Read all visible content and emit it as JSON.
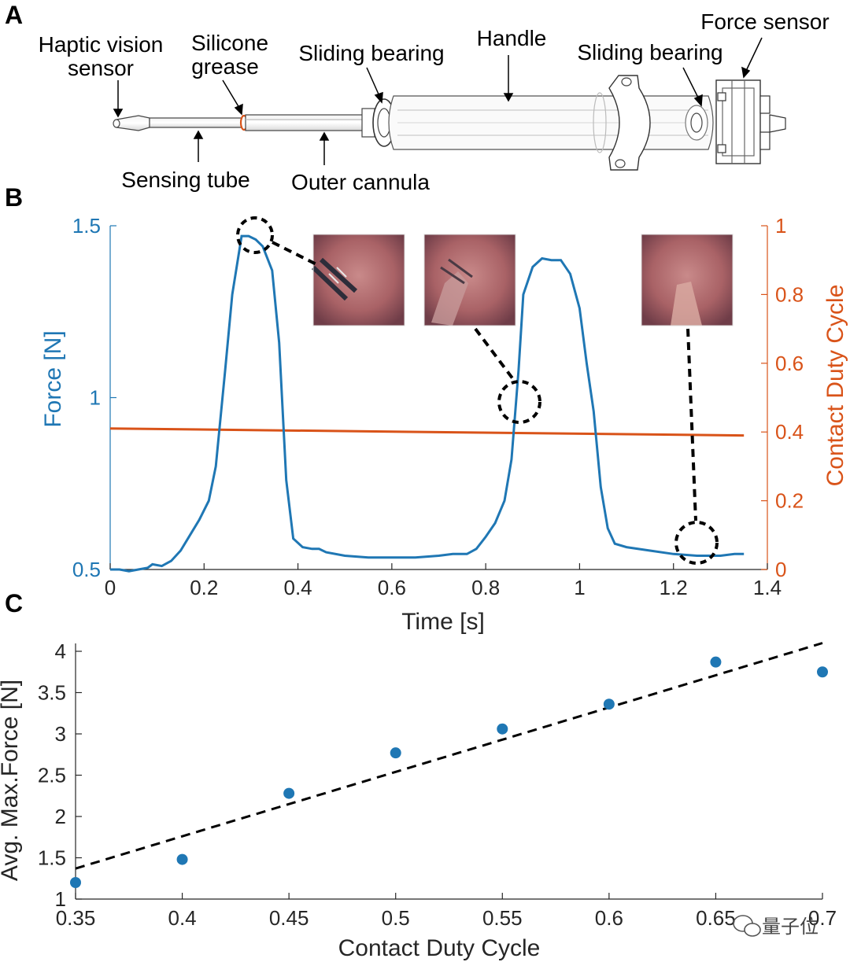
{
  "panels": {
    "a": {
      "letter": "A"
    },
    "b": {
      "letter": "B"
    },
    "c": {
      "letter": "C"
    }
  },
  "device": {
    "labels": {
      "haptic_line1": "Haptic vision",
      "haptic_line2": "sensor",
      "silicone_line1": "Silicone",
      "silicone_line2": "grease",
      "sliding_bearing_1": "Sliding bearing",
      "handle": "Handle",
      "sliding_bearing_2": "Sliding bearing",
      "force_sensor": "Force sensor",
      "sensing_tube": "Sensing tube",
      "outer_cannula": "Outer cannula"
    }
  },
  "colors": {
    "force": "#1f77b4",
    "duty": "#d95319",
    "axis_dark": "#262626",
    "tissue": "#b06a6a",
    "tissue_dark": "#6e3a44"
  },
  "watermark": {
    "text": "量子位"
  },
  "chart_data": [
    {
      "id": "B",
      "type": "line",
      "xlabel": "Time [s]",
      "ylabel": "Force [N]",
      "y2label": "Contact Duty Cycle",
      "xlim": [
        0,
        1.4
      ],
      "ylim": [
        0.5,
        1.5
      ],
      "y2lim": [
        0,
        1
      ],
      "xticks": [
        "0",
        "0.2",
        "0.4",
        "0.6",
        "0.8",
        "1",
        "1.2",
        "1.4"
      ],
      "yticks": [
        "0.5",
        "1",
        "1.5"
      ],
      "y2ticks": [
        "0",
        "0.2",
        "0.4",
        "0.6",
        "0.8",
        "1"
      ],
      "grid": false,
      "series": [
        {
          "axis": "left",
          "x": [
            0,
            0.02,
            0.04,
            0.06,
            0.08,
            0.09,
            0.11,
            0.13,
            0.15,
            0.17,
            0.19,
            0.21,
            0.225,
            0.245,
            0.26,
            0.28,
            0.295,
            0.31,
            0.325,
            0.345,
            0.36,
            0.375,
            0.39,
            0.41,
            0.43,
            0.445,
            0.46,
            0.5,
            0.55,
            0.6,
            0.65,
            0.7,
            0.73,
            0.76,
            0.78,
            0.8,
            0.82,
            0.84,
            0.855,
            0.87,
            0.88,
            0.9,
            0.92,
            0.94,
            0.96,
            0.98,
            1.0,
            1.015,
            1.03,
            1.045,
            1.06,
            1.075,
            1.1,
            1.15,
            1.2,
            1.25,
            1.3,
            1.33,
            1.35
          ],
          "y": [
            0.5,
            0.5,
            0.495,
            0.5,
            0.505,
            0.515,
            0.51,
            0.525,
            0.555,
            0.6,
            0.645,
            0.7,
            0.8,
            1.08,
            1.3,
            1.47,
            1.47,
            1.46,
            1.44,
            1.37,
            1.16,
            0.76,
            0.59,
            0.565,
            0.56,
            0.56,
            0.55,
            0.54,
            0.535,
            0.535,
            0.535,
            0.54,
            0.545,
            0.545,
            0.56,
            0.595,
            0.635,
            0.7,
            0.82,
            1.08,
            1.3,
            1.38,
            1.405,
            1.4,
            1.4,
            1.36,
            1.26,
            1.1,
            0.96,
            0.74,
            0.62,
            0.575,
            0.565,
            0.555,
            0.545,
            0.54,
            0.54,
            0.545,
            0.545
          ]
        },
        {
          "axis": "right",
          "x": [
            0,
            1.35
          ],
          "y": [
            0.41,
            0.39
          ]
        }
      ]
    },
    {
      "id": "C",
      "type": "scatter",
      "xlabel": "Contact Duty Cycle",
      "ylabel": "Avg. Max.Force [N]",
      "xlim": [
        0.35,
        0.7
      ],
      "ylim": [
        1,
        4
      ],
      "xticks": [
        "0.35",
        "0.4",
        "0.45",
        "0.5",
        "0.55",
        "0.6",
        "0.65",
        "0.7"
      ],
      "yticks": [
        "1",
        "1.5",
        "2",
        "2.5",
        "3",
        "3.5",
        "4"
      ],
      "grid": false,
      "points": {
        "x": [
          0.35,
          0.4,
          0.45,
          0.5,
          0.55,
          0.6,
          0.65,
          0.7
        ],
        "y": [
          1.2,
          1.48,
          2.28,
          2.77,
          3.06,
          3.36,
          3.87,
          3.75
        ]
      },
      "fit": {
        "style": "dashed",
        "x": [
          0.35,
          0.7
        ],
        "y": [
          1.37,
          4.1
        ]
      }
    }
  ]
}
